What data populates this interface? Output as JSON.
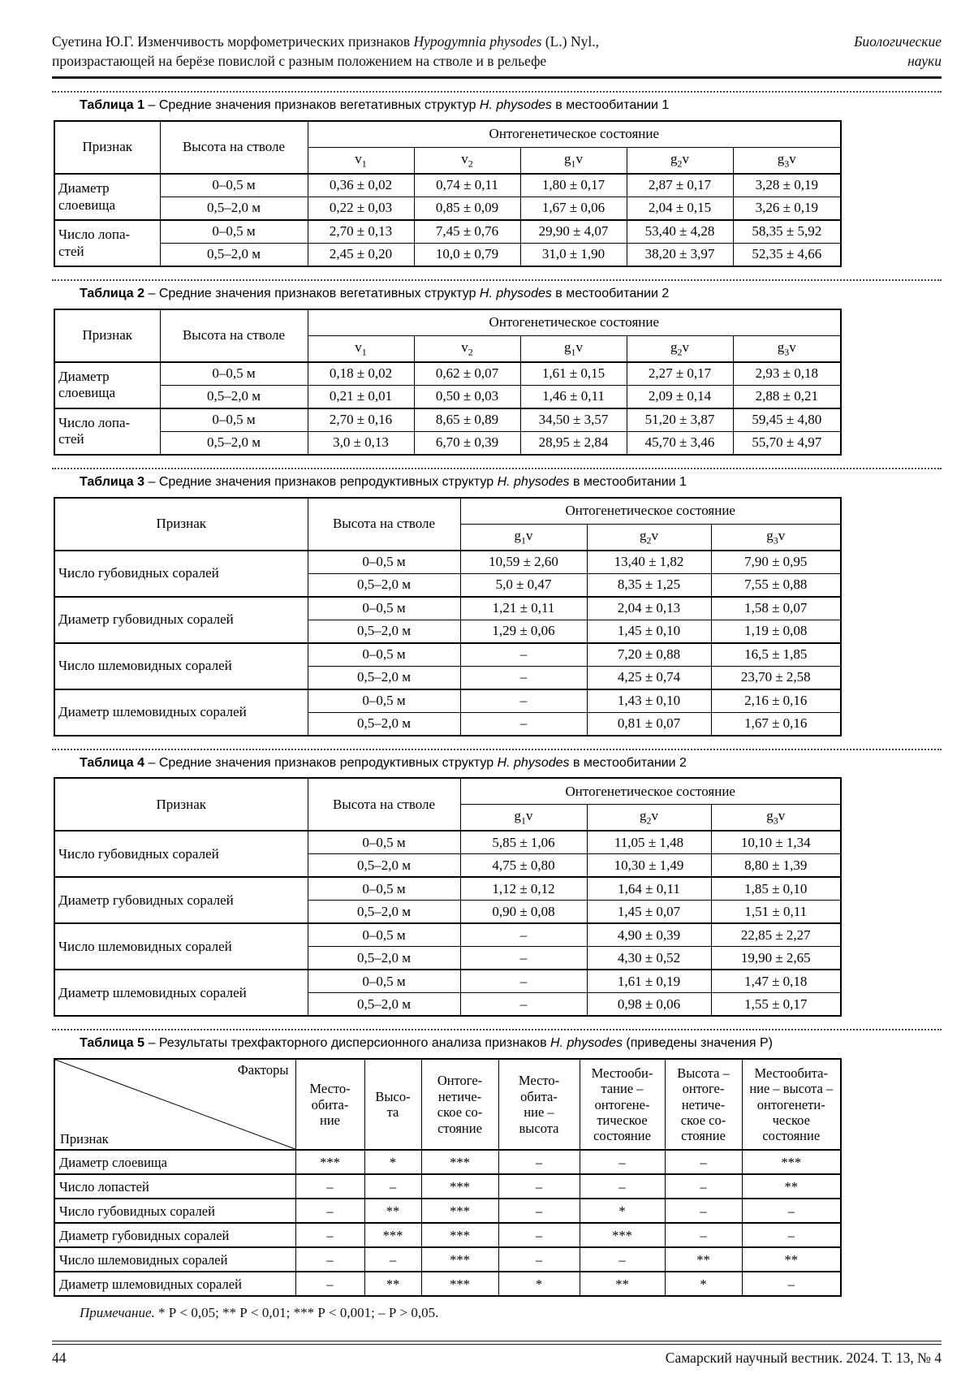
{
  "header": {
    "author_title": "Суетина Ю.Г. Изменчивость морфометрических признаков",
    "species": "Hypogymnia physodes",
    "after_species": "(L.) Nyl.,",
    "line2": "произрастающей на берёзе повислой с разным положением на стволе и в рельефе",
    "section_line1": "Биологические",
    "section_line2": "науки"
  },
  "common": {
    "feature_header": "Признак",
    "height_header": "Высота на стволе",
    "state_header": "Онтогенетическое состояние"
  },
  "tables": [
    {
      "number": "Таблица 1",
      "pre": "Средние значения признаков вегетативных структур",
      "species": "H. physodes",
      "post": "в местообитании 1",
      "states": [
        "v1",
        "v2",
        "g1v",
        "g2v",
        "g3v"
      ],
      "rows": [
        {
          "feature": "Диаметр\nслоевища",
          "subrows": [
            {
              "height": "0–0,5 м",
              "values": [
                "0,36 ± 0,02",
                "0,74 ± 0,11",
                "1,80 ± 0,17",
                "2,87 ± 0,17",
                "3,28 ± 0,19"
              ]
            },
            {
              "height": "0,5–2,0 м",
              "values": [
                "0,22 ± 0,03",
                "0,85 ± 0,09",
                "1,67 ± 0,06",
                "2,04 ± 0,15",
                "3,26 ± 0,19"
              ]
            }
          ]
        },
        {
          "feature": "Число лопа-\nстей",
          "subrows": [
            {
              "height": "0–0,5 м",
              "values": [
                "2,70 ± 0,13",
                "7,45 ± 0,76",
                "29,90 ± 4,07",
                "53,40 ± 4,28",
                "58,35 ± 5,92"
              ]
            },
            {
              "height": "0,5–2,0 м",
              "values": [
                "2,45 ± 0,20",
                "10,0 ± 0,79",
                "31,0 ± 1,90",
                "38,20 ± 3,97",
                "52,35 ± 4,66"
              ]
            }
          ]
        }
      ]
    },
    {
      "number": "Таблица 2",
      "pre": "Средние значения признаков вегетативных структур",
      "species": "H. physodes",
      "post": "в местообитании 2",
      "states": [
        "v1",
        "v2",
        "g1v",
        "g2v",
        "g3v"
      ],
      "rows": [
        {
          "feature": "Диаметр\nслоевища",
          "subrows": [
            {
              "height": "0–0,5 м",
              "values": [
                "0,18 ± 0,02",
                "0,62 ± 0,07",
                "1,61 ± 0,15",
                "2,27 ± 0,17",
                "2,93 ± 0,18"
              ]
            },
            {
              "height": "0,5–2,0 м",
              "values": [
                "0,21 ± 0,01",
                "0,50 ± 0,03",
                "1,46 ± 0,11",
                "2,09 ± 0,14",
                "2,88 ± 0,21"
              ]
            }
          ]
        },
        {
          "feature": "Число лопа-\nстей",
          "subrows": [
            {
              "height": "0–0,5 м",
              "values": [
                "2,70 ± 0,16",
                "8,65 ± 0,89",
                "34,50 ± 3,57",
                "51,20 ± 3,87",
                "59,45 ± 4,80"
              ]
            },
            {
              "height": "0,5–2,0 м",
              "values": [
                "3,0 ± 0,13",
                "6,70 ± 0,39",
                "28,95 ± 2,84",
                "45,70 ± 3,46",
                "55,70 ± 4,97"
              ]
            }
          ]
        }
      ]
    },
    {
      "number": "Таблица 3",
      "pre": "Средние значения признаков репродуктивных структур",
      "species": "H. physodes",
      "post": "в местообитании 1",
      "states": [
        "g1v",
        "g2v",
        "g3v"
      ],
      "rows": [
        {
          "feature": "Число губовидных соралей",
          "subrows": [
            {
              "height": "0–0,5 м",
              "values": [
                "10,59 ± 2,60",
                "13,40 ± 1,82",
                "7,90 ± 0,95"
              ]
            },
            {
              "height": "0,5–2,0 м",
              "values": [
                "5,0 ± 0,47",
                "8,35 ± 1,25",
                "7,55 ± 0,88"
              ]
            }
          ]
        },
        {
          "feature": "Диаметр губовидных соралей",
          "subrows": [
            {
              "height": "0–0,5 м",
              "values": [
                "1,21 ± 0,11",
                "2,04 ± 0,13",
                "1,58 ± 0,07"
              ]
            },
            {
              "height": "0,5–2,0 м",
              "values": [
                "1,29 ± 0,06",
                "1,45 ± 0,10",
                "1,19 ± 0,08"
              ]
            }
          ]
        },
        {
          "feature": "Число шлемовидных соралей",
          "subrows": [
            {
              "height": "0–0,5 м",
              "values": [
                "–",
                "7,20 ± 0,88",
                "16,5 ± 1,85"
              ]
            },
            {
              "height": "0,5–2,0 м",
              "values": [
                "–",
                "4,25 ± 0,74",
                "23,70 ± 2,58"
              ]
            }
          ]
        },
        {
          "feature": "Диаметр шлемовидных соралей",
          "subrows": [
            {
              "height": "0–0,5 м",
              "values": [
                "–",
                "1,43 ± 0,10",
                "2,16 ± 0,16"
              ]
            },
            {
              "height": "0,5–2,0 м",
              "values": [
                "–",
                "0,81 ± 0,07",
                "1,67 ± 0,16"
              ]
            }
          ]
        }
      ]
    },
    {
      "number": "Таблица 4",
      "pre": "Средние значения признаков репродуктивных структур",
      "species": "H. physodes",
      "post": "в местообитании 2",
      "states": [
        "g1v",
        "g2v",
        "g3v"
      ],
      "rows": [
        {
          "feature": "Число губовидных соралей",
          "subrows": [
            {
              "height": "0–0,5 м",
              "values": [
                "5,85 ± 1,06",
                "11,05 ± 1,48",
                "10,10 ± 1,34"
              ]
            },
            {
              "height": "0,5–2,0 м",
              "values": [
                "4,75 ± 0,80",
                "10,30 ± 1,49",
                "8,80 ± 1,39"
              ]
            }
          ]
        },
        {
          "feature": "Диаметр губовидных соралей",
          "subrows": [
            {
              "height": "0–0,5 м",
              "values": [
                "1,12 ± 0,12",
                "1,64 ± 0,11",
                "1,85 ± 0,10"
              ]
            },
            {
              "height": "0,5–2,0 м",
              "values": [
                "0,90 ± 0,08",
                "1,45 ± 0,07",
                "1,51 ± 0,11"
              ]
            }
          ]
        },
        {
          "feature": "Число шлемовидных соралей",
          "subrows": [
            {
              "height": "0–0,5 м",
              "values": [
                "–",
                "4,90 ± 0,39",
                "22,85 ± 2,27"
              ]
            },
            {
              "height": "0,5–2,0 м",
              "values": [
                "–",
                "4,30 ± 0,52",
                "19,90 ± 2,65"
              ]
            }
          ]
        },
        {
          "feature": "Диаметр шлемовидных соралей",
          "subrows": [
            {
              "height": "0–0,5 м",
              "values": [
                "–",
                "1,61 ± 0,19",
                "1,47 ± 0,18"
              ]
            },
            {
              "height": "0,5–2,0 м",
              "values": [
                "–",
                "0,98 ± 0,06",
                "1,55 ± 0,17"
              ]
            }
          ]
        }
      ]
    }
  ],
  "anova": {
    "number": "Таблица 5",
    "pre": "Результаты трехфакторного дисперсионного анализа признаков",
    "species": "H. physodes",
    "post": "(приведены значения Р)",
    "corner_top": "Факторы",
    "corner_bottom": "Признак",
    "factors": [
      "Место-\nобита-\nние",
      "Высо-\nта",
      "Онтоге-\nнетиче-\nское со-\nстояние",
      "Место-\nобита-\nние –\nвысота",
      "Местооби-\nтание –\nонтогене-\nтическое\nсостояние",
      "Высота –\nонтоге-\nнетиче-\nское со-\nстояние",
      "Местообита-\nние – высота –\nонтогенети-\nческое\nсостояние"
    ],
    "rows": [
      {
        "feature": "Диаметр слоевища",
        "values": [
          "***",
          "*",
          "***",
          "–",
          "–",
          "–",
          "***"
        ]
      },
      {
        "feature": "Число лопастей",
        "values": [
          "–",
          "–",
          "***",
          "–",
          "–",
          "–",
          "**"
        ]
      },
      {
        "feature": "Число губовидных соралей",
        "values": [
          "–",
          "**",
          "***",
          "–",
          "*",
          "–",
          "–"
        ]
      },
      {
        "feature": "Диаметр губовидных соралей",
        "values": [
          "–",
          "***",
          "***",
          "–",
          "***",
          "–",
          "–"
        ]
      },
      {
        "feature": "Число шлемовидных соралей",
        "values": [
          "–",
          "–",
          "***",
          "–",
          "–",
          "**",
          "**"
        ]
      },
      {
        "feature": "Диаметр шлемовидных соралей",
        "values": [
          "–",
          "**",
          "***",
          "*",
          "**",
          "*",
          "–"
        ]
      }
    ]
  },
  "note": {
    "label": "Примечание.",
    "text": " * Р < 0,05; ** Р < 0,01; *** Р < 0,001; – Р > 0,05."
  },
  "footer": {
    "page_number": "44",
    "journal": "Самарский научный вестник. 2024. Т. 13, № 4"
  }
}
